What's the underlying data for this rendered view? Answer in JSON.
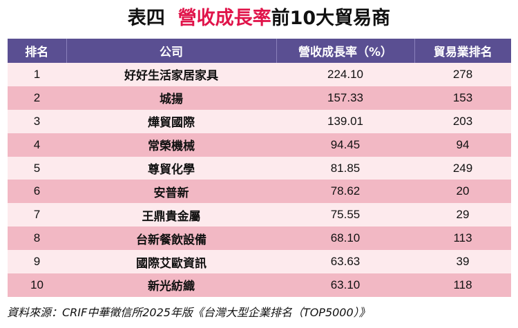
{
  "title": {
    "prefix": "表四",
    "highlight": "營收成長率",
    "suffix": "前10大貿易商"
  },
  "table": {
    "headers": [
      "排名",
      "公司",
      "營收成長率（%）",
      "貿易業排名"
    ],
    "rows": [
      {
        "rank": "1",
        "company": "好好生活家居家具",
        "growth": "224.10",
        "trade_rank": "278"
      },
      {
        "rank": "2",
        "company": "城揚",
        "growth": "157.33",
        "trade_rank": "153"
      },
      {
        "rank": "3",
        "company": "燁貿國際",
        "growth": "139.01",
        "trade_rank": "203"
      },
      {
        "rank": "4",
        "company": "常榮機械",
        "growth": "94.45",
        "trade_rank": "94"
      },
      {
        "rank": "5",
        "company": "尊貿化學",
        "growth": "81.85",
        "trade_rank": "249"
      },
      {
        "rank": "6",
        "company": "安普新",
        "growth": "78.62",
        "trade_rank": "20"
      },
      {
        "rank": "7",
        "company": "王鼎貴金屬",
        "growth": "75.55",
        "trade_rank": "29"
      },
      {
        "rank": "8",
        "company": "台新餐飲設備",
        "growth": "68.10",
        "trade_rank": "113"
      },
      {
        "rank": "9",
        "company": "國際艾歐資訊",
        "growth": "63.63",
        "trade_rank": "39"
      },
      {
        "rank": "10",
        "company": "新光紡織",
        "growth": "63.10",
        "trade_rank": "118"
      }
    ]
  },
  "source": "資料來源：CRIF中華徵信所2025年版《台灣大型企業排名（TOP5000）》",
  "colors": {
    "header_bg": "#5a4f92",
    "row_light": "#fdeaed",
    "row_dark": "#f2b8c4",
    "accent": "#e0144a"
  }
}
